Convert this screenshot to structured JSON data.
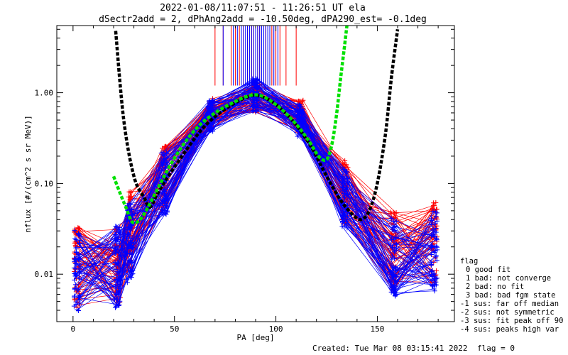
{
  "chart_data": {
    "type": "scatter",
    "title": "2022-01-08/11:07:51 - 11:26:51 UT ela",
    "subtitle": "dSectr2add = 2, dPhAng2add = -10.50deg, dPA290_est=  -0.1deg",
    "xlabel": "PA [deg]",
    "ylabel": "nflux [#/(cm^2 s sr MeV)]",
    "xlim": [
      -8,
      188
    ],
    "ylim": [
      0.003,
      5.5
    ],
    "yscale": "log",
    "x_ticks": [
      0,
      50,
      100,
      150
    ],
    "x_tick_labels": [
      "0",
      "50",
      "100",
      "150"
    ],
    "y_ticks": [
      0.01,
      0.1,
      1.0
    ],
    "y_tick_labels": [
      "0.01",
      "0.10",
      "1.00"
    ],
    "grid": false,
    "legend_position": "right, outside plot",
    "legend_title": "flag",
    "legend_entries": [
      "0 good fit",
      "1 bad: not converge",
      "2 bad: no fit",
      "3 bad: bad fgm state",
      "-1 sus: far off median",
      "-2 sus: not symmetric",
      "-3 sus: fit peak off 90",
      "-4 sus: peaks high var"
    ],
    "series": [
      {
        "color": "#ff0000",
        "marker": "plus",
        "style": "thin polylines, one per spectrum",
        "x": [
          2,
          22,
          28,
          45,
          68,
          90,
          112,
          134,
          158,
          178
        ],
        "y": [
          0.012,
          0.013,
          0.03,
          0.12,
          0.6,
          0.92,
          0.55,
          0.08,
          0.018,
          0.022
        ]
      },
      {
        "color": "#0000ff",
        "marker": "plus",
        "style": "thin polylines, one per spectrum",
        "x": [
          2,
          22,
          28,
          45,
          68,
          90,
          112,
          134,
          158,
          178
        ],
        "y": [
          0.011,
          0.012,
          0.022,
          0.1,
          0.55,
          0.95,
          0.5,
          0.07,
          0.015,
          0.018
        ]
      },
      {
        "color": "#000000",
        "style": "thick dashed fit curve",
        "x": [
          21,
          25,
          30,
          35,
          38,
          42,
          48,
          55,
          62,
          68,
          75,
          82,
          88,
          91,
          96,
          102,
          110,
          118,
          125,
          132,
          138,
          142,
          146,
          150,
          154,
          157,
          160
        ],
        "y": [
          4.8,
          0.5,
          0.12,
          0.07,
          0.055,
          0.08,
          0.13,
          0.22,
          0.36,
          0.5,
          0.66,
          0.82,
          0.93,
          0.93,
          0.85,
          0.68,
          0.44,
          0.24,
          0.12,
          0.065,
          0.045,
          0.04,
          0.05,
          0.1,
          0.35,
          1.5,
          5.0
        ]
      },
      {
        "color": "#00e000",
        "style": "thick dashed fit curve",
        "x": [
          20,
          23,
          26,
          29,
          32,
          36,
          42,
          48,
          55,
          62,
          70,
          78,
          85,
          90,
          95,
          102,
          110,
          116,
          121,
          124,
          126,
          128,
          130,
          132,
          134,
          135
        ],
        "y": [
          0.12,
          0.08,
          0.055,
          0.038,
          0.038,
          0.05,
          0.09,
          0.16,
          0.28,
          0.43,
          0.6,
          0.76,
          0.9,
          0.95,
          0.88,
          0.68,
          0.45,
          0.3,
          0.2,
          0.18,
          0.2,
          0.3,
          0.6,
          1.5,
          3.5,
          5.5
        ]
      }
    ],
    "spikes": {
      "red_x": [
        70,
        74,
        78,
        80,
        82,
        84,
        86,
        88,
        89,
        91,
        92,
        95,
        98,
        100,
        102,
        105,
        110
      ],
      "blue_x": [
        74,
        79,
        81,
        83,
        84,
        85,
        86,
        87,
        88,
        89,
        90,
        91,
        92,
        93,
        94,
        95,
        96,
        97,
        99,
        101
      ],
      "top_y": 5.5,
      "bottom_y": 1.2
    }
  },
  "footer": {
    "created": "Created: Tue Mar 08 03:15:41 2022",
    "flag": "flag = 0"
  }
}
